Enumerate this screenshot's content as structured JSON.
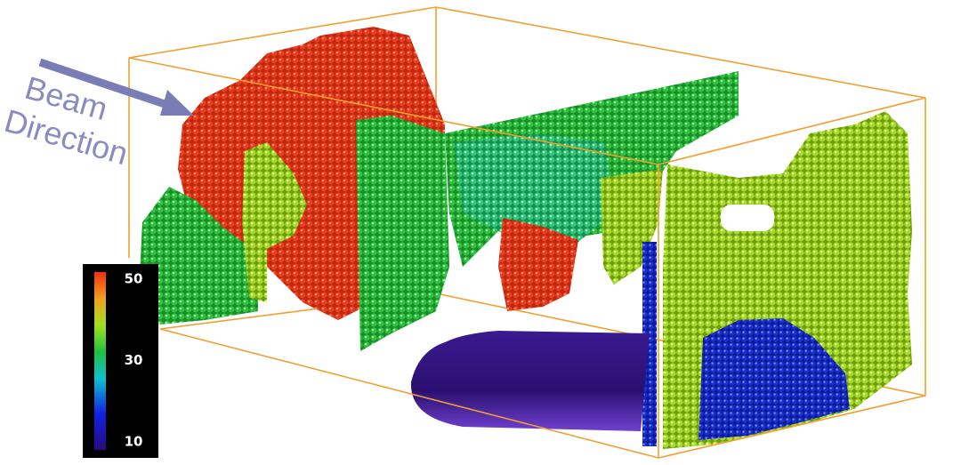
{
  "annotation": {
    "lines": [
      "Beam",
      "Direction"
    ]
  },
  "colorbar": {
    "ticks": [
      50,
      30,
      10
    ]
  }
}
